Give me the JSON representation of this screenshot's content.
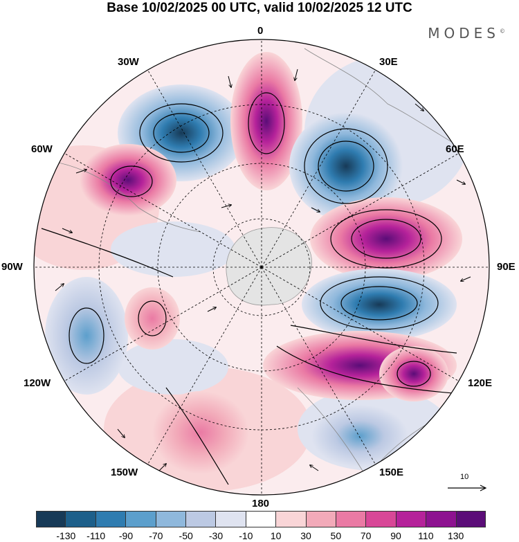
{
  "title": "Base 10/02/2025 00 UTC, valid 10/02/2025 12 UTC",
  "logo": "MODES",
  "logo_mark": "©",
  "longitude_labels": {
    "lon_0": "0",
    "lon_30e": "30E",
    "lon_60e": "60E",
    "lon_90e": "90E",
    "lon_120e": "120E",
    "lon_150e": "150E",
    "lon_180": "180",
    "lon_150w": "150W",
    "lon_120w": "120W",
    "lon_90w": "90W",
    "lon_60w": "60W",
    "lon_30w": "30W"
  },
  "reference_vector": "10",
  "colorbar": {
    "colors": [
      "#173a57",
      "#1d5f8a",
      "#2f7cb0",
      "#5c9fcc",
      "#8fb8dc",
      "#bcc9e3",
      "#dfe3f0",
      "#ffffff",
      "#f9d5d7",
      "#f2aab9",
      "#ea7aa4",
      "#d84797",
      "#b5229a",
      "#8d1290",
      "#5b0d78"
    ],
    "ticks": [
      "-130",
      "-110",
      "-90",
      "-70",
      "-50",
      "-30",
      "-10",
      "10",
      "30",
      "50",
      "70",
      "90",
      "110",
      "130"
    ]
  },
  "anomaly_centers": [
    {
      "sign": "neg",
      "lon": -36,
      "lat": -52,
      "value": -130
    },
    {
      "sign": "pos",
      "lon": 0,
      "lat": -50,
      "value": 130
    },
    {
      "sign": "neg",
      "lon": 40,
      "lat": -52,
      "value": -120
    },
    {
      "sign": "pos",
      "lon": -57,
      "lat": -45,
      "value": 90
    },
    {
      "sign": "pos",
      "lon": 80,
      "lat": -50,
      "value": 130
    },
    {
      "sign": "neg",
      "lon": 100,
      "lat": -52,
      "value": -130
    },
    {
      "sign": "pos",
      "lon": 122,
      "lat": -50,
      "value": 90
    },
    {
      "sign": "neg",
      "lon": -110,
      "lat": -40,
      "value": -70
    },
    {
      "sign": "pos",
      "lon": -115,
      "lat": -62,
      "value": 50
    },
    {
      "sign": "pos",
      "lon": -150,
      "lat": -45,
      "value": 50
    },
    {
      "sign": "neg",
      "lon": 150,
      "lat": -50,
      "value": -50
    }
  ]
}
